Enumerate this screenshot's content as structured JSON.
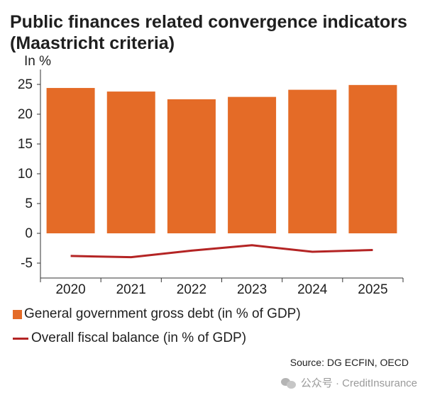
{
  "header": {
    "title": "Public finances related convergence indicators (Maastricht criteria)",
    "unit": "In %"
  },
  "chart_data": {
    "type": "bar",
    "categories": [
      "2020",
      "2021",
      "2022",
      "2023",
      "2024",
      "2025"
    ],
    "ylim": [
      -7,
      27
    ],
    "yticks": [
      -5,
      0,
      5,
      10,
      15,
      20,
      25
    ],
    "ytick_labels": [
      "-5",
      "0",
      "5",
      "10",
      "15",
      "20",
      "25"
    ],
    "grid": false,
    "legend_position": "bottom",
    "series": [
      {
        "name": "General government gross debt (in % of GDP)",
        "type": "bar",
        "color": "#e46b27",
        "values": [
          24.4,
          23.8,
          22.5,
          22.9,
          24.1,
          24.9
        ]
      },
      {
        "name": "Overall fiscal balance (in % of GDP)",
        "type": "line",
        "color": "#b42424",
        "values": [
          -3.8,
          -4.0,
          -2.9,
          -2.0,
          -3.1,
          -2.8
        ]
      }
    ]
  },
  "footer": {
    "source": "Source: DG ECFIN, OECD",
    "watermark": "公众号 · CreditInsurance",
    "watermark_icon": "wechat-icon"
  }
}
